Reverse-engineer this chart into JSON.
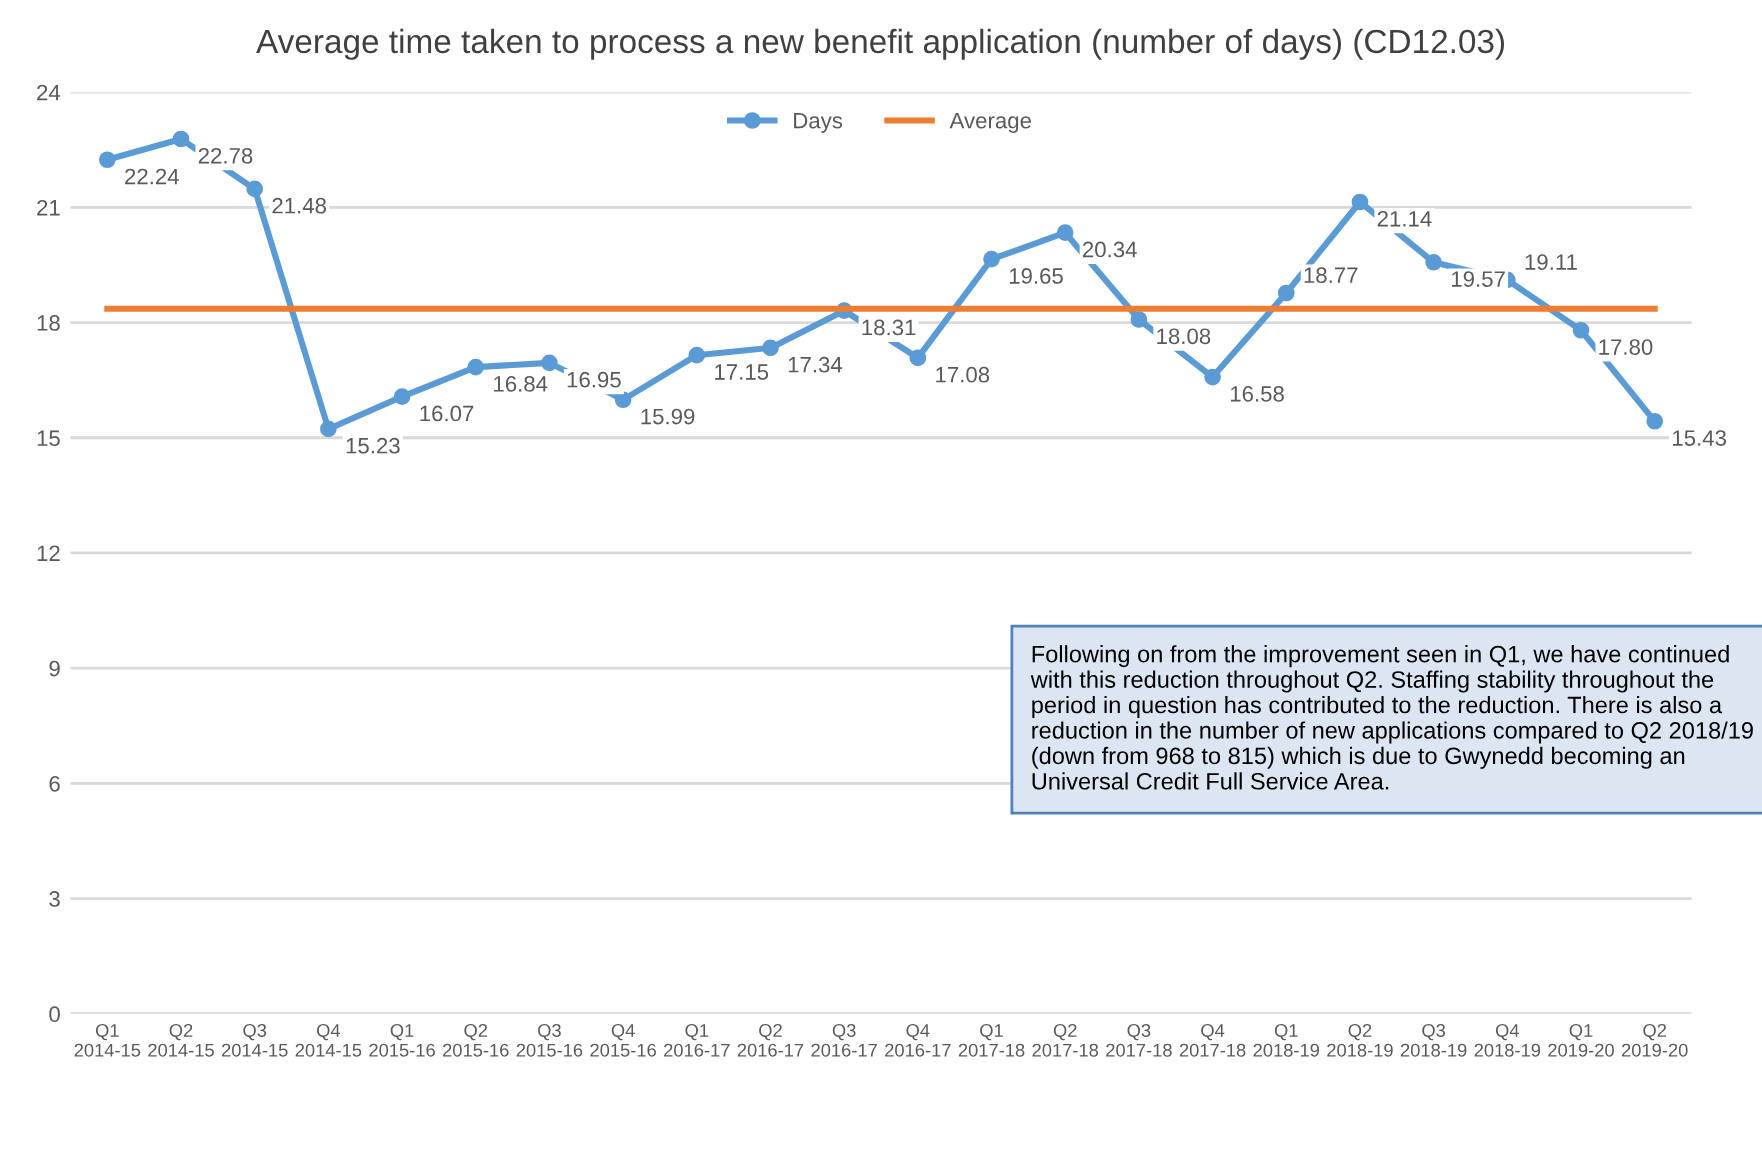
{
  "chart_data": {
    "type": "line",
    "title": "Average time taken to process a new benefit application (number of days) (CD12.03)",
    "categories": [
      "Q1\n2014-15",
      "Q2\n2014-15",
      "Q3\n2014-15",
      "Q4\n2014-15",
      "Q1\n2015-16",
      "Q2\n2015-16",
      "Q3\n2015-16",
      "Q4\n2015-16",
      "Q1\n2016-17",
      "Q2\n2016-17",
      "Q3\n2016-17",
      "Q4\n2016-17",
      "Q1\n2017-18",
      "Q2\n2017-18",
      "Q3\n2017-18",
      "Q4\n2017-18",
      "Q1\n2018-19",
      "Q2\n2018-19",
      "Q3\n2018-19",
      "Q4\n2018-19",
      "Q1\n2019-20",
      "Q2\n2019-20"
    ],
    "series": [
      {
        "name": "Days",
        "color": "#5b9bd5",
        "marker": "circle",
        "values": [
          22.24,
          22.78,
          21.48,
          15.23,
          16.07,
          16.84,
          16.95,
          15.99,
          17.15,
          17.34,
          18.31,
          17.08,
          19.65,
          20.34,
          18.08,
          16.58,
          18.77,
          21.14,
          19.57,
          19.11,
          17.8,
          15.43
        ],
        "value_labels": [
          "22.24",
          "22.78",
          "21.48",
          "15.23",
          "16.07",
          "16.84",
          "16.95",
          "15.99",
          "17.15",
          "17.34",
          "18.31",
          "17.08",
          "19.65",
          "20.34",
          "18.08",
          "16.58",
          "18.77",
          "21.14",
          "19.57",
          "19.11",
          "17.80",
          "15.43"
        ]
      },
      {
        "name": "Average",
        "color": "#ed7d31",
        "marker": "none",
        "values": [
          18.36,
          18.36,
          18.36,
          18.36,
          18.36,
          18.36,
          18.36,
          18.36,
          18.36,
          18.36,
          18.36,
          18.36,
          18.36,
          18.36,
          18.36,
          18.36,
          18.36,
          18.36,
          18.36,
          18.36,
          18.36,
          18.36
        ]
      }
    ],
    "ylim": [
      0,
      24
    ],
    "yticks": [
      0,
      3,
      6,
      9,
      12,
      15,
      18,
      21,
      24
    ],
    "grid": "y",
    "legend": "top",
    "annotations": [
      "Following on from the improvement seen in Q1, we have continued with this reduction throughout Q2. Staffing stability throughout the period in question has contributed to the reduction. There is also a reduction in the number of new applications compared to Q2 2018/19 (down from 968 to 815) which is due to Gwynedd becoming an Universal Credit Full Service Area."
    ]
  }
}
